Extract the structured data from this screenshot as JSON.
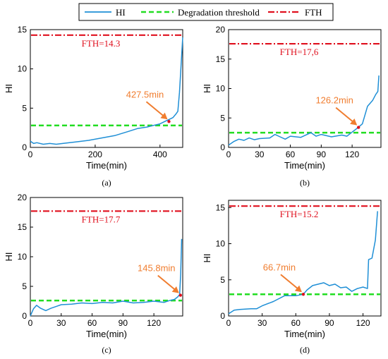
{
  "legend": {
    "entries": [
      {
        "label": "HI",
        "color": "#1f8fd6",
        "style": "solid"
      },
      {
        "label": "Degradation threshold",
        "color": "#22dd22",
        "style": "dashed"
      },
      {
        "label": "FTH",
        "color": "#e0101e",
        "style": "dashdot"
      }
    ]
  },
  "colors": {
    "hi": "#1f8fd6",
    "threshold": "#22dd22",
    "fth": "#e0101e",
    "annotation": "#f07d2f"
  },
  "chart_data": [
    {
      "type": "line",
      "caption": "(a)",
      "xlabel": "Time(min)",
      "ylabel": "HI",
      "xlim": [
        0,
        470
      ],
      "ylim": [
        0,
        15
      ],
      "xticks": [
        0,
        200,
        400
      ],
      "yticks": [
        0,
        5,
        10,
        15
      ],
      "degradation_threshold": 2.8,
      "fth": 14.3,
      "fth_label": "FTH=14.3",
      "annotation": {
        "label": "427.5min",
        "x": 427.5,
        "y": 3.3
      },
      "series": [
        {
          "x": [
            0,
            10,
            20,
            40,
            60,
            80,
            100,
            140,
            180,
            220,
            260,
            300,
            330,
            360,
            380,
            400,
            420,
            430,
            440,
            450,
            455,
            460,
            465,
            470
          ],
          "y": [
            0.8,
            0.5,
            0.6,
            0.4,
            0.5,
            0.4,
            0.5,
            0.7,
            0.9,
            1.2,
            1.5,
            2.0,
            2.4,
            2.6,
            2.8,
            3.0,
            3.4,
            3.6,
            3.8,
            4.3,
            4.6,
            7.0,
            10.5,
            14.0
          ]
        }
      ]
    },
    {
      "type": "line",
      "caption": "(b)",
      "xlabel": "Time(min)",
      "ylabel": "HI",
      "xlim": [
        0,
        148
      ],
      "ylim": [
        0,
        20
      ],
      "xticks": [
        0,
        30,
        60,
        90,
        120
      ],
      "yticks": [
        0,
        5,
        10,
        15,
        20
      ],
      "degradation_threshold": 2.5,
      "fth": 17.6,
      "fth_label": "FTH=17,6",
      "annotation": {
        "label": "126.2min",
        "x": 126.2,
        "y": 3.4
      },
      "series": [
        {
          "x": [
            0,
            5,
            10,
            15,
            20,
            25,
            30,
            40,
            45,
            50,
            55,
            60,
            70,
            80,
            85,
            90,
            100,
            110,
            115,
            120,
            126,
            130,
            135,
            140,
            143,
            145,
            146
          ],
          "y": [
            0.4,
            1.0,
            1.4,
            1.2,
            1.6,
            1.3,
            1.5,
            1.6,
            2.2,
            1.8,
            1.4,
            1.9,
            1.7,
            2.5,
            1.9,
            2.2,
            1.8,
            2.1,
            1.9,
            2.6,
            3.4,
            4.0,
            7.0,
            8.0,
            9.0,
            9.5,
            12.2
          ]
        }
      ]
    },
    {
      "type": "line",
      "caption": "(c)",
      "xlabel": "Time(min)",
      "ylabel": "HI",
      "xlim": [
        0,
        148
      ],
      "ylim": [
        0,
        20
      ],
      "xticks": [
        0,
        30,
        60,
        90,
        120
      ],
      "yticks": [
        0,
        5,
        10,
        15,
        20
      ],
      "degradation_threshold": 2.6,
      "fth": 17.7,
      "fth_label": "FTH=17.7",
      "annotation": {
        "label": "145.8min",
        "x": 145.8,
        "y": 3.5
      },
      "series": [
        {
          "x": [
            0,
            3,
            6,
            10,
            15,
            20,
            25,
            30,
            40,
            50,
            60,
            70,
            80,
            90,
            100,
            110,
            120,
            130,
            135,
            140,
            143,
            145,
            146,
            147
          ],
          "y": [
            0.0,
            1.2,
            1.8,
            1.3,
            0.9,
            1.3,
            1.6,
            1.9,
            2.0,
            2.2,
            2.1,
            2.3,
            2.2,
            2.5,
            2.2,
            2.3,
            2.5,
            2.3,
            2.6,
            2.8,
            3.2,
            3.6,
            7.0,
            13.0
          ]
        }
      ]
    },
    {
      "type": "line",
      "caption": "(d)",
      "xlabel": "Time(min)",
      "ylabel": "HI",
      "xlim": [
        0,
        136
      ],
      "ylim": [
        0,
        16
      ],
      "xticks": [
        0,
        30,
        60,
        90,
        120
      ],
      "yticks": [
        0,
        5,
        10,
        15
      ],
      "degradation_threshold": 3.0,
      "fth": 15.2,
      "fth_label": "FTH=15.2",
      "annotation": {
        "label": "66.7min",
        "x": 66.7,
        "y": 3.0
      },
      "series": [
        {
          "x": [
            0,
            5,
            10,
            20,
            25,
            30,
            40,
            50,
            60,
            66.7,
            70,
            75,
            80,
            85,
            90,
            95,
            100,
            105,
            110,
            115,
            120,
            124,
            125,
            128,
            131,
            133
          ],
          "y": [
            0.3,
            0.8,
            0.9,
            1.0,
            1.0,
            1.4,
            2.0,
            2.8,
            2.8,
            3.0,
            3.6,
            4.2,
            4.4,
            4.6,
            4.2,
            4.4,
            3.9,
            4.0,
            3.4,
            3.8,
            4.0,
            3.8,
            7.8,
            8.0,
            10.5,
            14.5
          ]
        }
      ]
    }
  ]
}
